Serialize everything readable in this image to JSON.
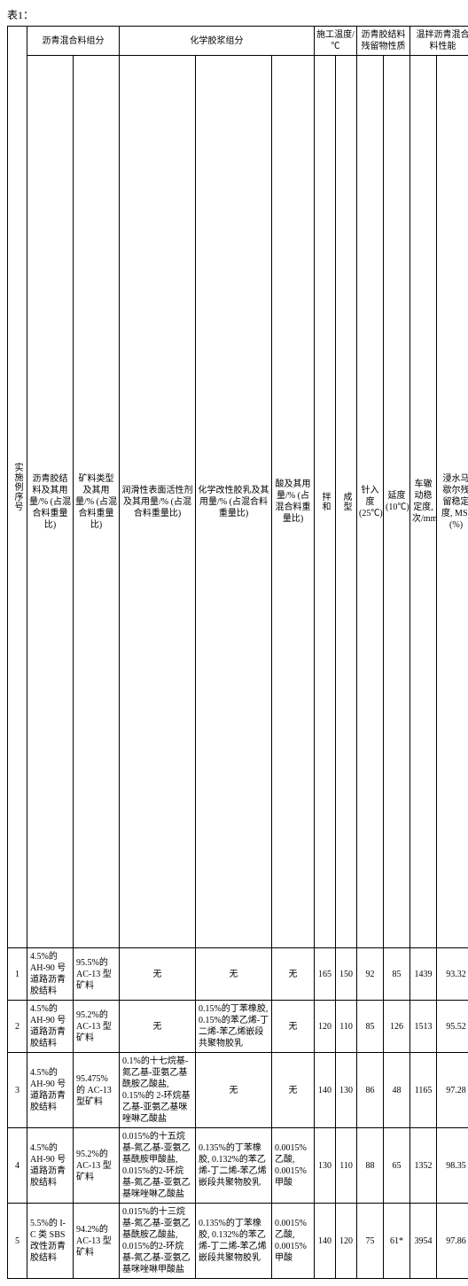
{
  "caption": "表1：",
  "headers": {
    "row_no": "实施例序号",
    "mix_group": "沥青混合料组分",
    "binder": "沥青胶结料及其用量/% (占混合料重量比)",
    "aggregate": "矿料类型及其用量/% (占混合料重量比)",
    "slurry_group": "化学胶浆组分",
    "surfactant": "润滑性表面活性剂及其用量/% (占混合料重量比)",
    "latex": "化学改性胶乳及其用量/% (占混合料重量比)",
    "acid": "酸及其用量/% (占混合料重量比)",
    "temp_group": "施工温度/℃",
    "mix_temp": "拌和",
    "form_temp": "成型",
    "residue_group": "沥青胶结料残留物性质",
    "penetration": "针入度 (25℃)",
    "ductility": "延度 (10℃)",
    "wma_group": "温拌沥青混合料性能",
    "rutting": "车辙动稳定度,次/mm",
    "marshall": "浸水马歇尔残留稳定度, MS₀ (%)"
  },
  "none": "无",
  "rows": [
    {
      "binder": "4.5%的 AH-90 号道路沥青胶结料",
      "aggregate": "95.5%的 AC-13 型矿料",
      "surfactant": "无",
      "latex": "无",
      "acid": "无",
      "mix_temp": "165",
      "form_temp": "150",
      "penetration": "92",
      "ductility": "85",
      "rutting": "1439",
      "marshall": "93.32"
    },
    {
      "binder": "4.5%的 AH-90 号道路沥青胶结料",
      "aggregate": "95.2%的 AC-13 型矿料",
      "surfactant": "无",
      "latex": "0.15%的丁苯橡胶, 0.15%的苯乙烯-丁二烯-苯乙烯嵌段共聚物胶乳",
      "acid": "无",
      "mix_temp": "120",
      "form_temp": "110",
      "penetration": "85",
      "ductility": "126",
      "rutting": "1513",
      "marshall": "95.52"
    },
    {
      "binder": "4.5%的 AH-90 号道路沥青胶结料",
      "aggregate": "95.475%   的 AC-13 型矿料",
      "surfactant": "0.1%的十七烷基-氮乙基-亚氨乙基酰胺乙酸盐, 0.15%的 2-环烷基乙基-亚氨乙基咪唑啉乙酸盐",
      "latex": "无",
      "acid": "无",
      "mix_temp": "140",
      "form_temp": "130",
      "penetration": "86",
      "ductility": "48",
      "rutting": "1165",
      "marshall": "97.28"
    },
    {
      "binder": "4.5%的 AH-90 号道路沥青胶结料",
      "aggregate": "95.2%的 AC-13 型矿料",
      "surfactant": "0.015%的十五烷基-氮乙基-亚氨乙基酰胺甲酸盐, 0.015%的2-环烷基-氮乙基-亚氨乙基咪唑啉乙酸盐",
      "latex": "0.135%的丁苯橡胶, 0.132%的苯乙烯-丁二烯-苯乙烯嵌段共聚物胶乳",
      "acid": "0.0015%   乙酸, 0.0015% 甲酸",
      "mix_temp": "130",
      "form_temp": "110",
      "penetration": "88",
      "ductility": "65",
      "rutting": "1352",
      "marshall": "98.35"
    },
    {
      "binder": "5.5%的 I-C 类 SBS 改性沥青胶结料",
      "aggregate": "94.2%的 AC-13 型矿料",
      "surfactant": "0.015%的十三烷基-氮乙基-亚氨乙基酰胺乙酸盐, 0.015%的2-环烷基-氮乙基-亚氨乙基咪唑啉甲酸盐",
      "latex": "0.135%的丁苯橡胶, 0.132%的苯乙烯-丁二烯-苯乙烯嵌段共聚物胶乳",
      "acid": "0.0015%   乙酸, 0.0015% 甲酸",
      "mix_temp": "140",
      "form_temp": "120",
      "penetration": "75",
      "ductility": "61*",
      "rutting": "3954",
      "marshall": "97.86"
    }
  ]
}
